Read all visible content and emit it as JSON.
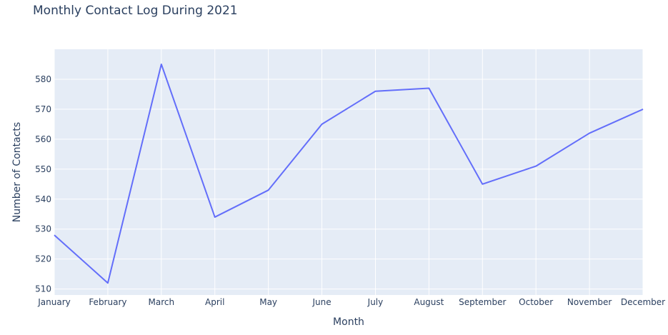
{
  "chart_data": {
    "type": "line",
    "title": "Monthly Contact Log During 2021",
    "xlabel": "Month",
    "ylabel": "Number of Contacts",
    "categories": [
      "January",
      "February",
      "March",
      "April",
      "May",
      "June",
      "July",
      "August",
      "September",
      "October",
      "November",
      "December"
    ],
    "series": [
      {
        "values": [
          528,
          512,
          585,
          534,
          543,
          565,
          576,
          577,
          545,
          551,
          562,
          570
        ]
      }
    ],
    "ylim": [
      508,
      590
    ],
    "yticks": [
      510,
      520,
      530,
      540,
      550,
      560,
      570,
      580
    ],
    "grid": true,
    "legend": "none",
    "colors": {
      "line": "#636efa",
      "plot_bg": "#e5ecf6",
      "grid": "#ffffff",
      "text": "#2a3f5f"
    }
  }
}
